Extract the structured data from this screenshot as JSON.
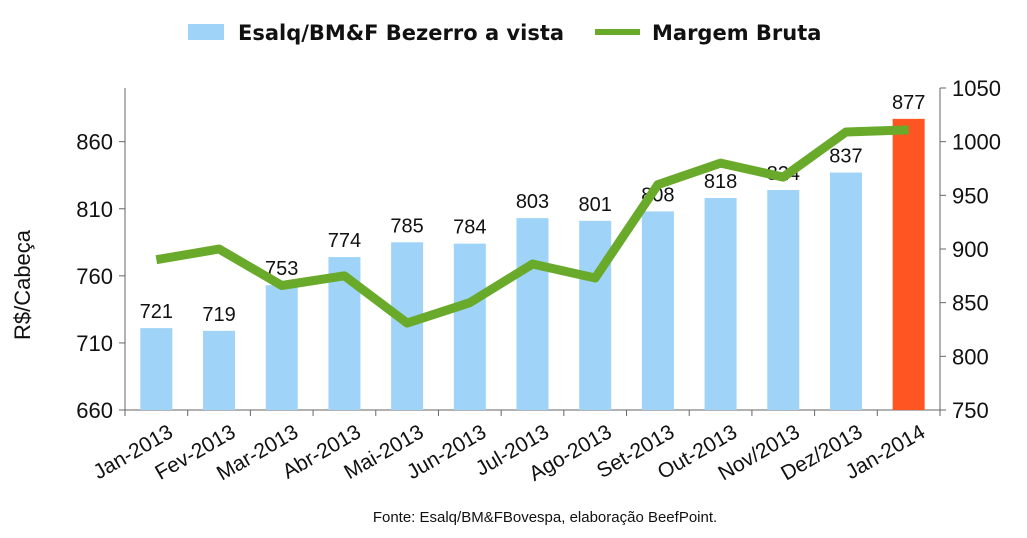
{
  "chart_data": {
    "type": "bar",
    "categories": [
      "Jan-2013",
      "Fev-2013",
      "Mar-2013",
      "Abr-2013",
      "Mai-2013",
      "Jun-2013",
      "Jul-2013",
      "Ago-2013",
      "Set-2013",
      "Out-2013",
      "Nov/2013",
      "Dez/2013",
      "Jan-2014"
    ],
    "series": [
      {
        "name": "Esalq/BM&F Bezerro a vista",
        "type": "bar",
        "axis": "left",
        "values": [
          721,
          719,
          753,
          774,
          785,
          784,
          803,
          801,
          808,
          818,
          824,
          837,
          877
        ],
        "color": "#9fd4f8",
        "highlight_color": "#ff5522",
        "highlight_index": 12
      },
      {
        "name": "Margem Bruta",
        "type": "line",
        "axis": "right",
        "values": [
          890,
          900,
          866,
          875,
          831,
          850,
          886,
          873,
          960,
          980,
          967,
          1009,
          1011
        ],
        "color": "#6aaa2a"
      }
    ],
    "ylabel": "R$/Cabeça",
    "ylim": [
      660,
      900
    ],
    "yticks": [
      660,
      710,
      760,
      810,
      860
    ],
    "y2lim": [
      750,
      1050
    ],
    "y2ticks": [
      750,
      800,
      850,
      900,
      950,
      1000,
      1050
    ],
    "legend_position": "top-center",
    "grid": false,
    "source": "Fonte: Esalq/BM&FBovespa, elaboração BeefPoint."
  }
}
